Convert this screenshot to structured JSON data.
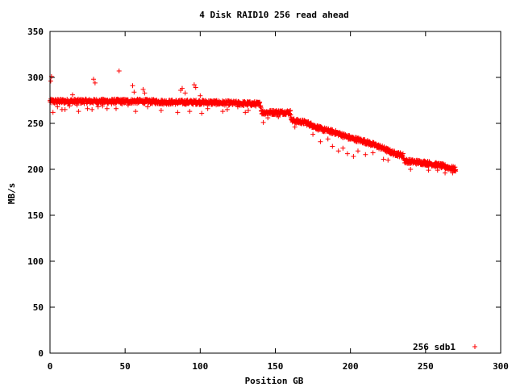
{
  "chart_data": {
    "type": "scatter",
    "title": "4 Disk RAID10 256 read ahead",
    "xlabel": "Position GB",
    "ylabel": "MB/s",
    "xlim": [
      0,
      300
    ],
    "ylim": [
      0,
      350
    ],
    "x_ticks": [
      0,
      50,
      100,
      150,
      200,
      250,
      300
    ],
    "y_ticks": [
      0,
      50,
      100,
      150,
      200,
      250,
      300,
      350
    ],
    "grid": false,
    "legend_position": "bottom-right",
    "marker": "plus",
    "series": [
      {
        "name": "256 sdb1",
        "color": "#ff0000",
        "sampling": {
          "x_start": 0,
          "x_end": 270,
          "x_step": 0.2
        },
        "trend": [
          [
            0,
            274
          ],
          [
            20,
            274
          ],
          [
            40,
            274
          ],
          [
            60,
            274
          ],
          [
            80,
            273
          ],
          [
            100,
            273
          ],
          [
            120,
            272
          ],
          [
            140,
            271
          ],
          [
            141,
            262
          ],
          [
            160,
            262
          ],
          [
            161,
            253
          ],
          [
            170,
            251
          ],
          [
            180,
            244
          ],
          [
            190,
            240
          ],
          [
            200,
            234
          ],
          [
            210,
            230
          ],
          [
            220,
            224
          ],
          [
            228,
            218
          ],
          [
            235,
            215
          ],
          [
            236,
            209
          ],
          [
            250,
            207
          ],
          [
            260,
            204
          ],
          [
            270,
            200
          ]
        ],
        "outliers": [
          [
            0.5,
            296
          ],
          [
            1,
            301
          ],
          [
            2,
            262
          ],
          [
            3,
            272
          ],
          [
            5,
            268
          ],
          [
            7,
            276
          ],
          [
            8,
            265
          ],
          [
            10,
            265
          ],
          [
            13,
            269
          ],
          [
            15,
            281
          ],
          [
            18,
            270
          ],
          [
            19,
            263
          ],
          [
            25,
            266
          ],
          [
            28,
            265
          ],
          [
            29,
            298
          ],
          [
            30,
            294
          ],
          [
            32,
            268
          ],
          [
            35,
            269
          ],
          [
            38,
            266
          ],
          [
            41,
            271
          ],
          [
            44,
            266
          ],
          [
            46,
            307
          ],
          [
            48,
            271
          ],
          [
            52,
            270
          ],
          [
            55,
            291
          ],
          [
            56,
            284
          ],
          [
            57,
            263
          ],
          [
            62,
            287
          ],
          [
            63,
            283
          ],
          [
            65,
            268
          ],
          [
            74,
            264
          ],
          [
            85,
            262
          ],
          [
            87,
            286
          ],
          [
            88,
            288
          ],
          [
            90,
            283
          ],
          [
            93,
            263
          ],
          [
            96,
            292
          ],
          [
            97,
            289
          ],
          [
            100,
            280
          ],
          [
            101,
            261
          ],
          [
            105,
            266
          ],
          [
            110,
            272
          ],
          [
            115,
            263
          ],
          [
            118,
            265
          ],
          [
            125,
            268
          ],
          [
            130,
            262
          ],
          [
            132,
            264
          ],
          [
            142,
            251
          ],
          [
            145,
            256
          ],
          [
            148,
            264
          ],
          [
            152,
            257
          ],
          [
            163,
            246
          ],
          [
            175,
            238
          ],
          [
            180,
            230
          ],
          [
            185,
            233
          ],
          [
            188,
            225
          ],
          [
            192,
            220
          ],
          [
            195,
            223
          ],
          [
            198,
            217
          ],
          [
            202,
            214
          ],
          [
            205,
            220
          ],
          [
            210,
            216
          ],
          [
            215,
            218
          ],
          [
            222,
            211
          ],
          [
            225,
            210
          ],
          [
            240,
            200
          ],
          [
            252,
            199
          ],
          [
            258,
            199
          ],
          [
            263,
            196
          ],
          [
            268,
            196
          ],
          [
            270,
            198
          ]
        ]
      }
    ]
  }
}
